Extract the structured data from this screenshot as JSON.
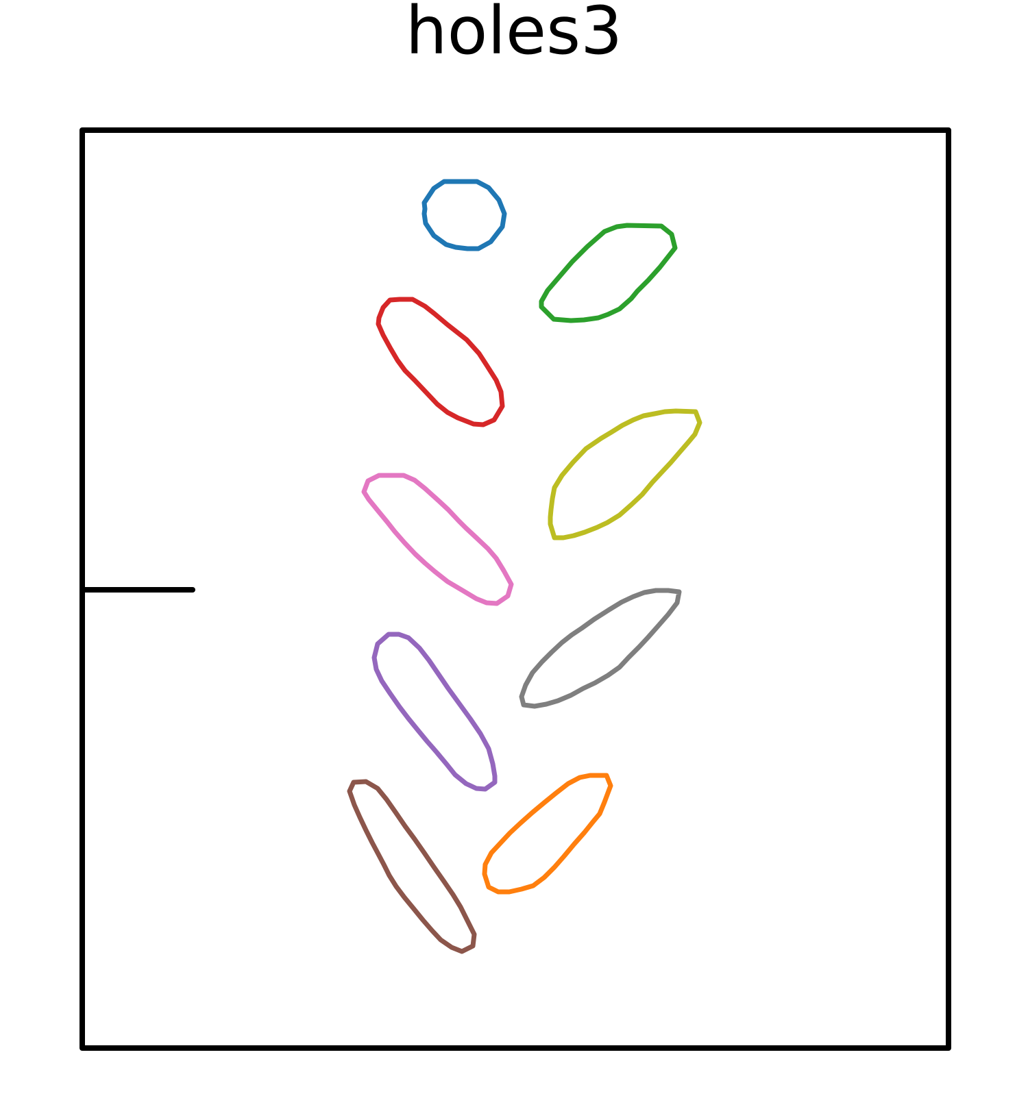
{
  "title": "holes3",
  "colors": {
    "outline": "#000000",
    "hole-blue": "#1f77b4",
    "hole-green": "#2ca02c",
    "hole-red": "#d62728",
    "hole-olive": "#bcbd22",
    "hole-pink": "#e377c2",
    "hole-gray": "#7f7f7f",
    "hole-purple": "#9467bd",
    "hole-orange": "#ff7f0e",
    "hole-brown": "#8c564b"
  },
  "holes": [
    {
      "name": "hole-blue",
      "color_key": "hole-blue"
    },
    {
      "name": "hole-green",
      "color_key": "hole-green"
    },
    {
      "name": "hole-red",
      "color_key": "hole-red"
    },
    {
      "name": "hole-olive",
      "color_key": "hole-olive"
    },
    {
      "name": "hole-pink",
      "color_key": "hole-pink"
    },
    {
      "name": "hole-gray",
      "color_key": "hole-gray"
    },
    {
      "name": "hole-purple",
      "color_key": "hole-purple"
    },
    {
      "name": "hole-orange",
      "color_key": "hole-orange"
    },
    {
      "name": "hole-brown",
      "color_key": "hole-brown"
    }
  ]
}
